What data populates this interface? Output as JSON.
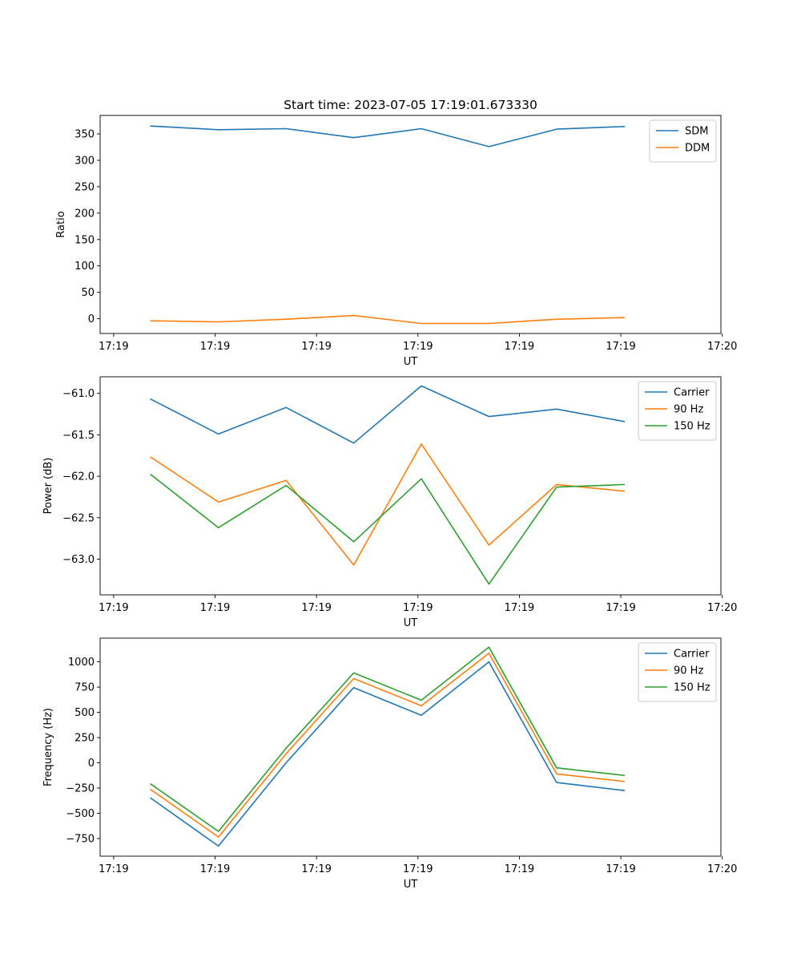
{
  "title": "Start time: 2023-07-05 17:19:01.673330",
  "chart_data": [
    {
      "type": "line",
      "ylabel": "Ratio",
      "xlabel": "UT",
      "xlim": [
        0,
        9.18
      ],
      "ylim": [
        -28,
        385
      ],
      "x": [
        0.75,
        1.75,
        2.75,
        3.75,
        4.75,
        5.75,
        6.75,
        7.75
      ],
      "xticks": [
        0.2,
        1.7,
        3.2,
        4.7,
        6.2,
        7.7,
        9.2
      ],
      "xtick_labels": [
        "17:19",
        "17:19",
        "17:19",
        "17:19",
        "17:19",
        "17:19",
        "17:20"
      ],
      "yticks": [
        0,
        50,
        100,
        150,
        200,
        250,
        300,
        350
      ],
      "yticks_labels": [
        "0",
        "50",
        "100",
        "150",
        "200",
        "250",
        "300",
        "350"
      ],
      "legend": "top-right",
      "series": [
        {
          "name": "SDM",
          "color": "#1f77b4",
          "values": [
            365,
            358,
            360,
            343,
            360,
            326,
            359,
            364
          ]
        },
        {
          "name": "DDM",
          "color": "#ff7f0e",
          "values": [
            -4,
            -6,
            -1,
            6,
            -9,
            -9,
            -1,
            2
          ]
        }
      ]
    },
    {
      "type": "line",
      "ylabel": "Power (dB)",
      "xlabel": "UT",
      "xlim": [
        0,
        9.18
      ],
      "ylim": [
        -63.43,
        -60.8
      ],
      "x": [
        0.75,
        1.75,
        2.75,
        3.75,
        4.75,
        5.75,
        6.75,
        7.75
      ],
      "xticks": [
        0.2,
        1.7,
        3.2,
        4.7,
        6.2,
        7.7,
        9.2
      ],
      "xtick_labels": [
        "17:19",
        "17:19",
        "17:19",
        "17:19",
        "17:19",
        "17:19",
        "17:20"
      ],
      "yticks": [
        -63.0,
        -62.5,
        -62.0,
        -61.5,
        -61.0
      ],
      "yticks_labels": [
        "−63.0",
        "−62.5",
        "−62.0",
        "−61.5",
        "−61.0"
      ],
      "legend": "top-right",
      "series": [
        {
          "name": "Carrier",
          "color": "#1f77b4",
          "values": [
            -61.07,
            -61.49,
            -61.17,
            -61.6,
            -60.91,
            -61.28,
            -61.19,
            -61.34
          ]
        },
        {
          "name": "90 Hz",
          "color": "#ff7f0e",
          "values": [
            -61.77,
            -62.31,
            -62.05,
            -63.07,
            -61.61,
            -62.83,
            -62.1,
            -62.18
          ]
        },
        {
          "name": "150 Hz",
          "color": "#2ca02c",
          "values": [
            -61.98,
            -62.62,
            -62.11,
            -62.79,
            -62.03,
            -63.3,
            -62.13,
            -62.1
          ]
        }
      ]
    },
    {
      "type": "line",
      "ylabel": "Frequency (Hz)",
      "xlabel": "UT",
      "xlim": [
        0,
        9.18
      ],
      "ylim": [
        -925,
        1235
      ],
      "x": [
        0.75,
        1.75,
        2.75,
        3.75,
        4.75,
        5.75,
        6.75,
        7.75
      ],
      "xticks": [
        0.2,
        1.7,
        3.2,
        4.7,
        6.2,
        7.7,
        9.2
      ],
      "xtick_labels": [
        "17:19",
        "17:19",
        "17:19",
        "17:19",
        "17:19",
        "17:19",
        "17:20"
      ],
      "yticks": [
        -750,
        -500,
        -250,
        0,
        250,
        500,
        750,
        1000
      ],
      "yticks_labels": [
        "−750",
        "−500",
        "−250",
        "0",
        "250",
        "500",
        "750",
        "1000"
      ],
      "legend": "top-right",
      "series": [
        {
          "name": "Carrier",
          "color": "#1f77b4",
          "values": [
            -350,
            -825,
            0,
            745,
            470,
            1000,
            -195,
            -275
          ]
        },
        {
          "name": "90 Hz",
          "color": "#ff7f0e",
          "values": [
            -265,
            -735,
            90,
            835,
            565,
            1085,
            -110,
            -185
          ]
        },
        {
          "name": "150 Hz",
          "color": "#2ca02c",
          "values": [
            -210,
            -680,
            145,
            890,
            620,
            1145,
            -50,
            -125
          ]
        }
      ]
    }
  ]
}
